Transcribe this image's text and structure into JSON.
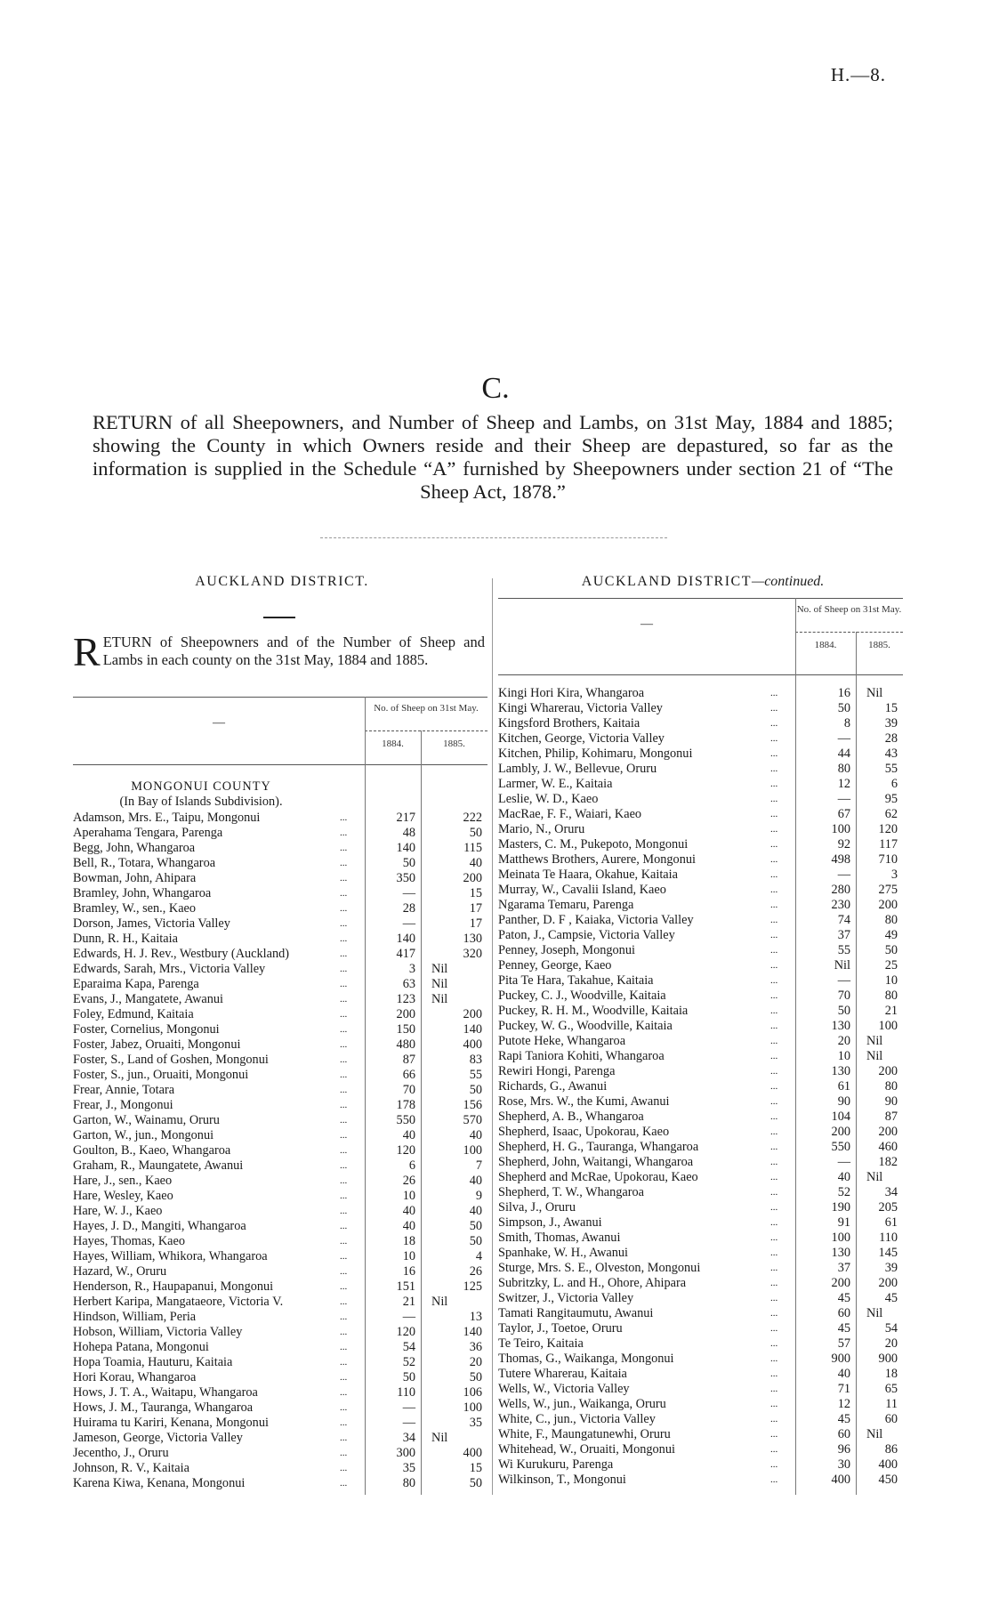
{
  "page_ref": "H.—8.",
  "section_letter": "C.",
  "title": "RETURN of all Sheepowners, and Number of Sheep and Lambs, on 31st May, 1884 and 1885; showing the County in which Owners reside and their Sheep are depastured, so far as the information is supplied in the Schedule “A” furnished by Sheepowners under section 21 of “The Sheep Act, 1878.”",
  "left": {
    "district": "AUCKLAND DISTRICT.",
    "intro_initial": "R",
    "intro_rest": "ETURN of Sheepowners and of the Number of Sheep and Lambs in each county on the 31st May, 1884 and 1885.",
    "header": {
      "dash": "—",
      "group": "No. of Sheep on 31st May.",
      "col1": "1884.",
      "col2": "1885."
    },
    "county": "MONGONUI COUNTY",
    "subdivision": "(In Bay of Islands Subdivision).",
    "rows": [
      [
        "Adamson, Mrs. E., Taipu, Mongonui",
        "217",
        "222"
      ],
      [
        "Aperahama Tengara, Parenga",
        "48",
        "50"
      ],
      [
        "Begg, John, Whangaroa",
        "140",
        "115"
      ],
      [
        "Bell, R., Totara, Whangaroa",
        "50",
        "40"
      ],
      [
        "Bowman, John, Ahipara",
        "350",
        "200"
      ],
      [
        "Bramley, John, Whangaroa",
        "—",
        "15"
      ],
      [
        "Bramley, W., sen., Kaeo",
        "28",
        "17"
      ],
      [
        "Dorson, James, Victoria Valley",
        "—",
        "17"
      ],
      [
        "Dunn, R. H., Kaitaia",
        "140",
        "130"
      ],
      [
        "Edwards, H. J. Rev., Westbury (Auckland)",
        "417",
        "320"
      ],
      [
        "Edwards, Sarah, Mrs., Victoria Valley",
        "3",
        "Nil"
      ],
      [
        "Eparaima Kapa, Parenga",
        "63",
        "Nil"
      ],
      [
        "Evans, J., Mangatete, Awanui",
        "123",
        "Nil"
      ],
      [
        "Foley, Edmund, Kaitaia",
        "200",
        "200"
      ],
      [
        "Foster, Cornelius, Mongonui",
        "150",
        "140"
      ],
      [
        "Foster, Jabez, Oruaiti, Mongonui",
        "480",
        "400"
      ],
      [
        "Foster, S., Land of Goshen, Mongonui",
        "87",
        "83"
      ],
      [
        "Foster, S., jun., Oruaiti, Mongonui",
        "66",
        "55"
      ],
      [
        "Frear, Annie, Totara",
        "70",
        "50"
      ],
      [
        "Frear, J., Mongonui",
        "178",
        "156"
      ],
      [
        "Garton, W., Wainamu, Oruru",
        "550",
        "570"
      ],
      [
        "Garton, W., jun., Mongonui",
        "40",
        "40"
      ],
      [
        "Goulton, B., Kaeo, Whangaroa",
        "120",
        "100"
      ],
      [
        "Graham, R., Maungatete, Awanui",
        "6",
        "7"
      ],
      [
        "Hare, J., sen., Kaeo",
        "26",
        "40"
      ],
      [
        "Hare, Wesley, Kaeo",
        "10",
        "9"
      ],
      [
        "Hare, W. J., Kaeo",
        "40",
        "40"
      ],
      [
        "Hayes, J. D., Mangiti, Whangaroa",
        "40",
        "50"
      ],
      [
        "Hayes, Thomas, Kaeo",
        "18",
        "50"
      ],
      [
        "Hayes, William, Whikora, Whangaroa",
        "10",
        "4"
      ],
      [
        "Hazard, W., Oruru",
        "16",
        "26"
      ],
      [
        "Henderson, R., Haupapanui, Mongonui",
        "151",
        "125"
      ],
      [
        "Herbert Karipa, Mangataeore, Victoria V.",
        "21",
        "Nil"
      ],
      [
        "Hindson, William, Peria",
        "—",
        "13"
      ],
      [
        "Hobson, William, Victoria Valley",
        "120",
        "140"
      ],
      [
        "Hohepa Patana, Mongonui",
        "54",
        "36"
      ],
      [
        "Hopa Toamia, Hauturu, Kaitaia",
        "52",
        "20"
      ],
      [
        "Hori Korau, Whangaroa",
        "50",
        "50"
      ],
      [
        "Hows, J. T. A., Waitapu, Whangaroa",
        "110",
        "106"
      ],
      [
        "Hows, J. M., Tauranga, Whangaroa",
        "—",
        "100"
      ],
      [
        "Huirama tu Kariri, Kenana, Mongonui",
        "—",
        "35"
      ],
      [
        "Jameson, George, Victoria Valley",
        "34",
        "Nil"
      ],
      [
        "Jecentho, J., Oruru",
        "300",
        "400"
      ],
      [
        "Johnson, R. V., Kaitaia",
        "35",
        "15"
      ],
      [
        "Karena Kiwa, Kenana, Mongonui",
        "80",
        "50"
      ]
    ]
  },
  "right": {
    "district": "AUCKLAND DISTRICT",
    "district_suffix": "—continued.",
    "header": {
      "dash": "—",
      "group": "No. of Sheep on 31st May.",
      "col1": "1884.",
      "col2": "1885."
    },
    "rows": [
      [
        "Kingi Hori Kira, Whangaroa",
        "16",
        "Nil"
      ],
      [
        "Kingi Wharerau, Victoria Valley",
        "50",
        "15"
      ],
      [
        "Kingsford Brothers, Kaitaia",
        "8",
        "39"
      ],
      [
        "Kitchen, George, Victoria Valley",
        "—",
        "28"
      ],
      [
        "Kitchen, Philip, Kohimaru, Mongonui",
        "44",
        "43"
      ],
      [
        "Lambly, J. W., Bellevue, Oruru",
        "80",
        "55"
      ],
      [
        "Larmer, W. E., Kaitaia",
        "12",
        "6"
      ],
      [
        "Leslie, W. D., Kaeo",
        "—",
        "95"
      ],
      [
        "MacRae, F. F., Waiari, Kaeo",
        "67",
        "62"
      ],
      [
        "Mario, N., Oruru",
        "100",
        "120"
      ],
      [
        "Masters, C. M., Pukepoto, Mongonui",
        "92",
        "117"
      ],
      [
        "Matthews Brothers, Aurere, Mongonui",
        "498",
        "710"
      ],
      [
        "Meinata Te Haara, Okahue, Kaitaia",
        "—",
        "3"
      ],
      [
        "Murray, W., Cavalii Island, Kaeo",
        "280",
        "275"
      ],
      [
        "Ngarama Temaru, Parenga",
        "230",
        "200"
      ],
      [
        "Panther, D. F , Kaiaka, Victoria Valley",
        "74",
        "80"
      ],
      [
        "Paton, J., Campsie, Victoria Valley",
        "37",
        "49"
      ],
      [
        "Penney, Joseph, Mongonui",
        "55",
        "50"
      ],
      [
        "Penney, George, Kaeo",
        "Nil",
        "25"
      ],
      [
        "Pita Te Hara, Takahue, Kaitaia",
        "—",
        "10"
      ],
      [
        "Puckey, C. J., Woodville, Kaitaia",
        "70",
        "80"
      ],
      [
        "Puckey, R. H. M., Woodville, Kaitaia",
        "50",
        "21"
      ],
      [
        "Puckey, W. G., Woodville, Kaitaia",
        "130",
        "100"
      ],
      [
        "Putote Heke, Whangaroa",
        "20",
        "Nil"
      ],
      [
        "Rapi Taniora Kohiti, Whangaroa",
        "10",
        "Nil"
      ],
      [
        "Rewiri Hongi, Parenga",
        "130",
        "200"
      ],
      [
        "Richards, G., Awanui",
        "61",
        "80"
      ],
      [
        "Rose, Mrs. W., the Kumi, Awanui",
        "90",
        "90"
      ],
      [
        "Shepherd, A. B., Whangaroa",
        "104",
        "87"
      ],
      [
        "Shepherd, Isaac, Upokorau, Kaeo",
        "200",
        "200"
      ],
      [
        "Shepherd, H. G., Tauranga, Whangaroa",
        "550",
        "460"
      ],
      [
        "Shepherd, John, Waitangi, Whangaroa",
        "—",
        "182"
      ],
      [
        "Shepherd and McRae, Upokorau, Kaeo",
        "40",
        "Nil"
      ],
      [
        "Shepherd, T. W., Whangaroa",
        "52",
        "34"
      ],
      [
        "Silva, J., Oruru",
        "190",
        "205"
      ],
      [
        "Simpson, J., Awanui",
        "91",
        "61"
      ],
      [
        "Smith, Thomas, Awanui",
        "100",
        "110"
      ],
      [
        "Spanhake, W. H., Awanui",
        "130",
        "145"
      ],
      [
        "Sturge, Mrs. S. E., Olveston, Mongonui",
        "37",
        "39"
      ],
      [
        "Subritzky, L. and H., Ohore, Ahipara",
        "200",
        "200"
      ],
      [
        "Switzer, J., Victoria Valley",
        "45",
        "45"
      ],
      [
        "Tamati Rangitaumutu, Awanui",
        "60",
        "Nil"
      ],
      [
        "Taylor, J., Toetoe, Oruru",
        "45",
        "54"
      ],
      [
        "Te Teiro, Kaitaia",
        "57",
        "20"
      ],
      [
        "Thomas, G., Waikanga, Mongonui",
        "900",
        "900"
      ],
      [
        "Tutere Wharerau, Kaitaia",
        "40",
        "18"
      ],
      [
        "Wells, W., Victoria Valley",
        "71",
        "65"
      ],
      [
        "Wells, W., jun., Waikanga, Oruru",
        "12",
        "11"
      ],
      [
        "White, C., jun., Victoria Valley",
        "45",
        "60"
      ],
      [
        "White, F., Maungatunewhi, Oruru",
        "60",
        "Nil"
      ],
      [
        "Whitehead, W., Oruaiti, Mongonui",
        "96",
        "86"
      ],
      [
        "Wi Kurukuru, Parenga",
        "30",
        "400"
      ],
      [
        "Wilkinson, T., Mongonui",
        "400",
        "450"
      ]
    ]
  },
  "leader_dots": "..."
}
